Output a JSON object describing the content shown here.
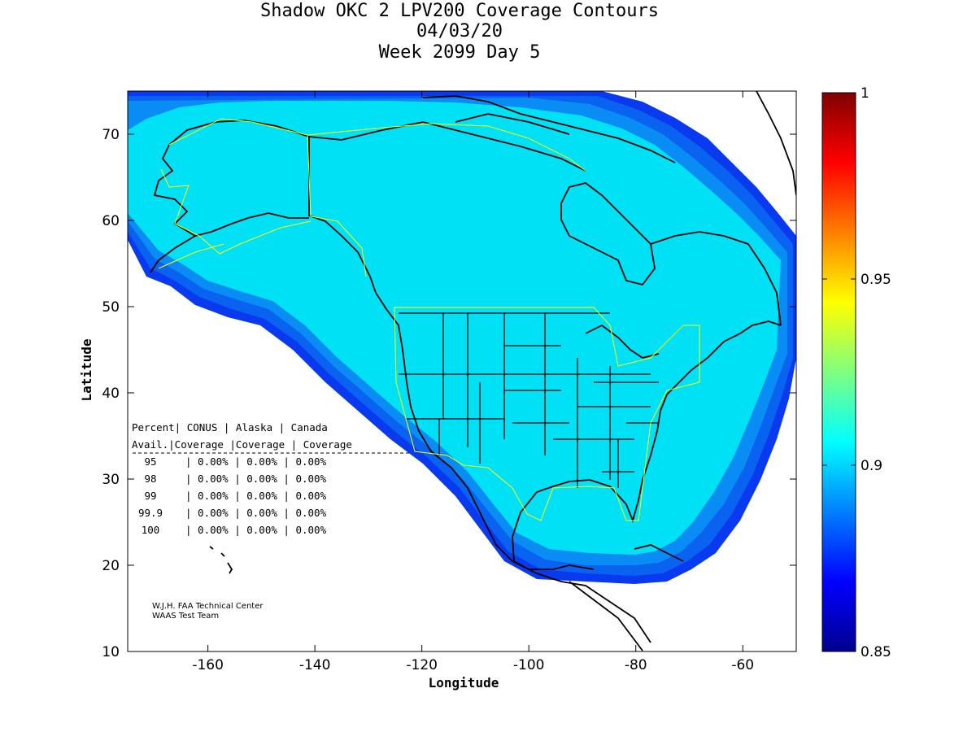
{
  "chart_data": {
    "type": "heatmap",
    "title": [
      "Shadow OKC 2 LPV200 Coverage Contours",
      "04/03/20",
      "Week 2099 Day 5"
    ],
    "xlabel": "Longitude",
    "ylabel": "Latitude",
    "xlim": [
      -175,
      -50
    ],
    "ylim": [
      10,
      75
    ],
    "x_ticks": [
      -160,
      -140,
      -120,
      -100,
      -80,
      -60
    ],
    "y_ticks": [
      10,
      20,
      30,
      40,
      50,
      60,
      70
    ],
    "x_tick_labels": [
      "-160",
      "-140",
      "-120",
      "-100",
      "-80",
      "-60"
    ],
    "y_tick_labels": [
      "10",
      "20",
      "30",
      "40",
      "50",
      "60",
      "70"
    ],
    "colorbar": {
      "range": [
        0.85,
        1.0
      ],
      "ticks": [
        0.85,
        0.9,
        0.95,
        1.0
      ],
      "tick_labels": [
        "0.85",
        "0.9",
        "0.95",
        "1"
      ],
      "colormap": "jet"
    },
    "coverage_levels": [
      {
        "value": 0.885,
        "color": "#0a8cf5"
      },
      {
        "value": 0.875,
        "color": "#0a62f0"
      },
      {
        "value": 0.865,
        "color": "#0a3aef"
      },
      {
        "value": 0.9,
        "color": "#00e1f5"
      }
    ],
    "availability_table": {
      "header_line1": [
        "Percent",
        "CONUS",
        "Alaska",
        "Canada"
      ],
      "header_line2": [
        "Avail.",
        "Coverage",
        "Coverage",
        "Coverage"
      ],
      "rows": [
        {
          "percent": "95",
          "conus": "0.00%",
          "alaska": "0.00%",
          "canada": "0.00%"
        },
        {
          "percent": "98",
          "conus": "0.00%",
          "alaska": "0.00%",
          "canada": "0.00%"
        },
        {
          "percent": "99",
          "conus": "0.00%",
          "alaska": "0.00%",
          "canada": "0.00%"
        },
        {
          "percent": "99.9",
          "conus": "0.00%",
          "alaska": "0.00%",
          "canada": "0.00%"
        },
        {
          "percent": "100",
          "conus": "0.00%",
          "alaska": "0.00%",
          "canada": "0.00%"
        }
      ]
    },
    "credit_lines": [
      "W.J.H. FAA Technical Center",
      "WAAS Test Team"
    ]
  }
}
